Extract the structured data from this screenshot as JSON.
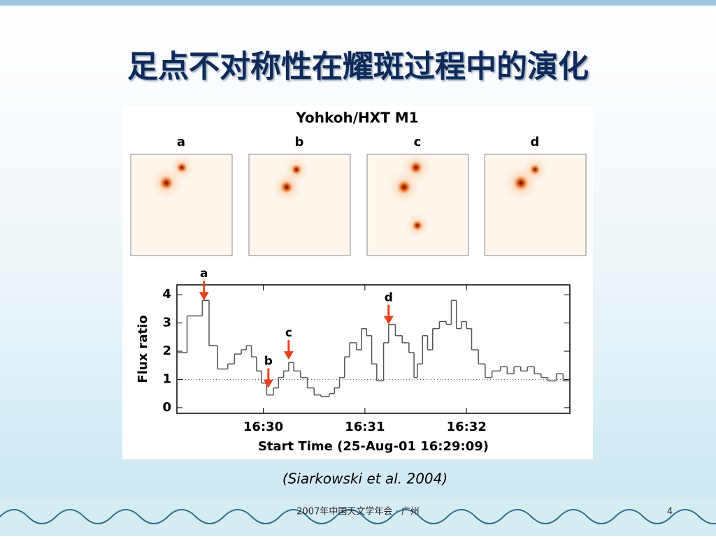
{
  "slide_title": "足点不对称性在耀斑过程中的演化",
  "figure_title": "Yohkoh/HXT M1",
  "panels": [
    "a",
    "b",
    "c",
    "d"
  ],
  "citation": "(Siarkowski et al. 2004)",
  "footer": "2007年中国天文学年会 · 广州",
  "page_number": "4",
  "chart_data": {
    "type": "line",
    "step": true,
    "x_label": "Start Time (25-Aug-01 16:29:09)",
    "y_label": "Flux ratio",
    "x": [
      0,
      6,
      15,
      19,
      24,
      30,
      34,
      38,
      41,
      44,
      47,
      50,
      53,
      57,
      60,
      63,
      66,
      69,
      73,
      77,
      81,
      85,
      90,
      93,
      96,
      99,
      102,
      106,
      109,
      112,
      115,
      118,
      122,
      125,
      129,
      133,
      137,
      140,
      142,
      145,
      148,
      151,
      155,
      159,
      162,
      165,
      168,
      171,
      174,
      178,
      182,
      186,
      191,
      195,
      199,
      203,
      207,
      211,
      215,
      219,
      224,
      228
    ],
    "series": [
      {
        "name": "Flux ratio",
        "color": "#555555",
        "values": [
          1.95,
          3.25,
          3.8,
          2.2,
          1.37,
          1.55,
          1.9,
          2.05,
          2.2,
          1.8,
          1.3,
          0.87,
          0.45,
          0.7,
          1.07,
          1.3,
          1.6,
          1.3,
          1.07,
          0.7,
          0.45,
          0.4,
          0.5,
          0.7,
          1.07,
          1.8,
          2.3,
          2.05,
          2.8,
          2.55,
          1.55,
          0.95,
          2.3,
          2.95,
          2.55,
          2.3,
          1.95,
          1.07,
          1.55,
          2.55,
          2.05,
          2.8,
          3.05,
          2.95,
          3.8,
          2.8,
          3.05,
          2.8,
          2.05,
          1.55,
          1.07,
          1.3,
          1.45,
          1.2,
          1.45,
          1.3,
          1.45,
          1.2,
          1.07,
          0.95,
          1.2,
          0.95
        ]
      }
    ],
    "xlim": [
      0,
      232
    ],
    "ylim": [
      -0.2,
      4.35
    ],
    "xticks": [
      {
        "value": 51,
        "label": "16:30"
      },
      {
        "value": 111,
        "label": "16:31"
      },
      {
        "value": 171,
        "label": "16:32"
      }
    ],
    "yticks": [
      0,
      1,
      2,
      3,
      4
    ],
    "reference_line": 1,
    "annotations": [
      {
        "label": "a",
        "x": 16,
        "y": 3.8
      },
      {
        "label": "b",
        "x": 54,
        "y": 0.7
      },
      {
        "label": "c",
        "x": 66,
        "y": 1.7
      },
      {
        "label": "d",
        "x": 125,
        "y": 2.95
      }
    ]
  }
}
